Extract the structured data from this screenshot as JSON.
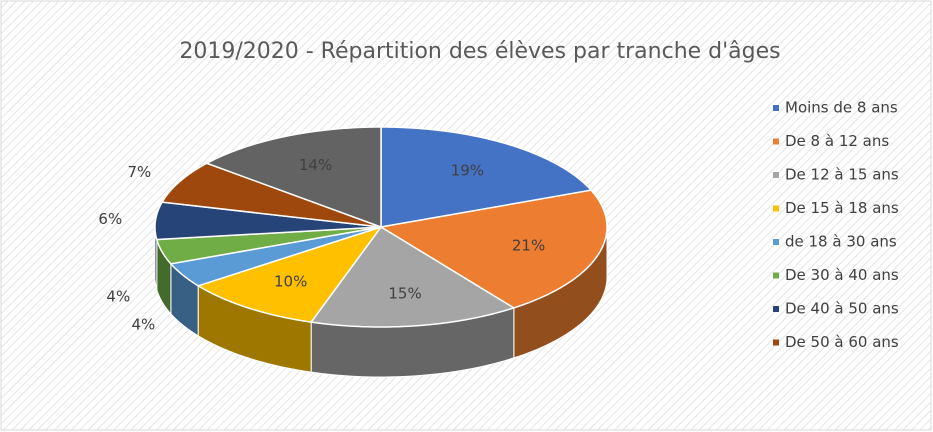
{
  "chart_data": {
    "type": "pie",
    "three_d": true,
    "title": "2019/2020 - Répartition des élèves par tranche d'âges",
    "categories": [
      "Moins de 8 ans",
      "De 8 à 12 ans",
      "De 12 à 15 ans",
      "De 15 à 18 ans",
      "de 18 à 30 ans",
      "De 30 à 40 ans",
      "De 40 à 50 ans",
      "De 50 à 60 ans",
      null
    ],
    "values": [
      19,
      21,
      15,
      10,
      4,
      4,
      6,
      7,
      14
    ],
    "value_labels": [
      "19%",
      "21%",
      "15%",
      "10%",
      "4%",
      "4%",
      "6%",
      "7%",
      "14%"
    ],
    "colors": [
      "#4472c4",
      "#ed7d31",
      "#a5a5a5",
      "#ffc000",
      "#5b9bd5",
      "#70ad47",
      "#264478",
      "#9e480e",
      "#636363"
    ],
    "legend": "right"
  }
}
